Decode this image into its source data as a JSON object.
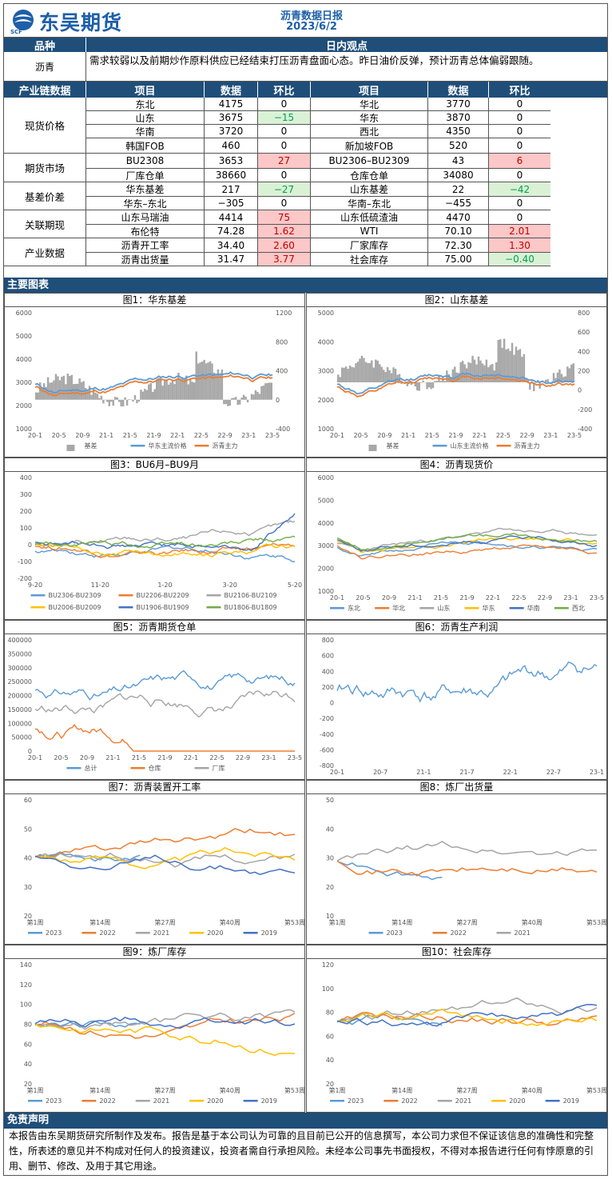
{
  "header": {
    "logo_text": "东吴期货",
    "logo_sub": "SCF",
    "title": "沥青数据日报",
    "date": "2023/6/2"
  },
  "section_view": {
    "col1": "品种",
    "col2": "日内观点",
    "product": "沥青",
    "view": "需求较弱以及前期炒作原料供应已经结束打压沥青盘面心态。昨日油价反弹，预计沥青总体偏弱跟随。"
  },
  "section_chain": {
    "headers": [
      "产业链数据",
      "项目",
      "数据",
      "环比",
      "项目",
      "数据",
      "环比"
    ],
    "groups": [
      {
        "name": "现货价格",
        "rows": 4
      },
      {
        "name": "期货市场",
        "rows": 2
      },
      {
        "name": "基差价差",
        "rows": 2
      },
      {
        "name": "关联期现",
        "rows": 2
      },
      {
        "name": "产业数据",
        "rows": 2
      }
    ],
    "rows": [
      [
        "东北",
        "4175",
        "0",
        "",
        "华北",
        "3770",
        "0",
        ""
      ],
      [
        "山东",
        "3675",
        "−15",
        "g",
        "华东",
        "3870",
        "0",
        ""
      ],
      [
        "华南",
        "3720",
        "0",
        "",
        "西北",
        "4350",
        "0",
        ""
      ],
      [
        "韩国FOB",
        "460",
        "0",
        "",
        "新加坡FOB",
        "520",
        "0",
        ""
      ],
      [
        "BU2308",
        "3653",
        "27",
        "r",
        "BU2306–BU2309",
        "43",
        "6",
        "r"
      ],
      [
        "厂库仓单",
        "38660",
        "0",
        "",
        "仓库仓单",
        "34080",
        "0",
        ""
      ],
      [
        "华东基差",
        "217",
        "−27",
        "g",
        "山东基差",
        "22",
        "−42",
        "g"
      ],
      [
        "华东–东北",
        "−305",
        "0",
        "",
        "华南–东北",
        "−455",
        "0",
        ""
      ],
      [
        "山东马瑞油",
        "4414",
        "75",
        "r",
        "山东低硫渣油",
        "4470",
        "0",
        ""
      ],
      [
        "布伦特",
        "74.28",
        "1.62",
        "r",
        "WTI",
        "70.10",
        "2.01",
        "r"
      ],
      [
        "沥青开工率",
        "34.40",
        "2.60",
        "r",
        "厂家库存",
        "72.30",
        "1.30",
        "r"
      ],
      [
        "沥青出货量",
        "31.47",
        "3.77",
        "r",
        "社会库存",
        "75.00",
        "−0.40",
        "g"
      ]
    ]
  },
  "charts_label": "主要图表",
  "colors": {
    "blue": "#5b9bd5",
    "orange": "#ed7d31",
    "gray": "#a5a5a5",
    "yellow": "#ffc000",
    "navy": "#4472c4",
    "green": "#70ad47",
    "bar_gray": "#a8a8a8"
  },
  "charts": [
    {
      "title": "图1：华东基差",
      "yl": [
        "6000",
        "5000",
        "4000",
        "3000",
        "2000",
        "1000"
      ],
      "yr": [
        "1200",
        "800",
        "400",
        "0",
        "-400"
      ],
      "x": [
        "20-1",
        "20-5",
        "20-9",
        "21-1",
        "21-5",
        "21-9",
        "22-1",
        "22-5",
        "22-9",
        "23-1",
        "23-5"
      ],
      "legend": [
        "基差",
        "华东主流价格",
        "沥青主力"
      ]
    },
    {
      "title": "图2：山东基差",
      "yl": [
        "5000",
        "4000",
        "3000",
        "2000",
        "1000"
      ],
      "yr": [
        "800",
        "600",
        "400",
        "200",
        "0",
        "-200",
        "-400"
      ],
      "x": [
        "20-1",
        "20-5",
        "20-9",
        "21-1",
        "21-5",
        "21-9",
        "22-1",
        "22-5",
        "22-9",
        "23-1",
        "23-5"
      ],
      "legend": [
        "基差",
        "山东主流价格",
        "沥青主力"
      ]
    },
    {
      "title": "图3：BU6月–BU9月",
      "yl": [
        "400",
        "300",
        "200",
        "100",
        "0",
        "-100",
        "-200"
      ],
      "x": [
        "9-20",
        "11-20",
        "1-20",
        "3-20",
        "5-20"
      ],
      "legend": [
        "BU2306-BU2309",
        "BU2206-BU2209",
        "BU2106-BU2109",
        "BU2006-BU2009",
        "BU1906-BU1909",
        "BU1806-BU1809"
      ]
    },
    {
      "title": "图4：沥青现货价",
      "yl": [
        "6000",
        "5000",
        "4000",
        "3000",
        "2000",
        "1000"
      ],
      "x": [
        "20-1",
        "20-5",
        "20-9",
        "21-1",
        "21-5",
        "21-9",
        "22-1",
        "22-5",
        "22-9",
        "23-1",
        "23-5"
      ],
      "legend": [
        "东北",
        "华北",
        "山东",
        "华东",
        "华南",
        "西北"
      ]
    },
    {
      "title": "图5：沥青期货仓单",
      "yl": [
        "400000",
        "350000",
        "300000",
        "250000",
        "200000",
        "150000",
        "100000",
        "50000",
        "0"
      ],
      "x": [
        "20-1",
        "20-5",
        "20-9",
        "21-1",
        "21-5",
        "21-9",
        "22-1",
        "22-5",
        "22-9",
        "23-1",
        "23-5"
      ],
      "legend": [
        "总计",
        "仓库",
        "厂库"
      ]
    },
    {
      "title": "图6：沥青生产利润",
      "yl": [
        "800",
        "600",
        "400",
        "200",
        "0",
        "-200",
        "-400",
        "-600",
        "-800"
      ],
      "x": [
        "20-1",
        "20-7",
        "21-1",
        "21-7",
        "22-1",
        "22-7",
        "23-1"
      ]
    },
    {
      "title": "图7：沥青装置开工率",
      "yl": [
        "60",
        "50",
        "40",
        "30",
        "20"
      ],
      "x": [
        "第1周",
        "第14周",
        "第27周",
        "第40周",
        "第53周"
      ],
      "legend": [
        "2023",
        "2022",
        "2021",
        "2020",
        "2019"
      ]
    },
    {
      "title": "图8：炼厂出货量",
      "yl": [
        "50",
        "40",
        "30",
        "20",
        "10"
      ],
      "x": [
        "第1周",
        "第14周",
        "第27周",
        "第40周",
        "第53周"
      ],
      "legend": [
        "2023",
        "2022",
        "2021"
      ]
    },
    {
      "title": "图9：炼厂库存",
      "yl": [
        "140",
        "120",
        "100",
        "80",
        "60",
        "40",
        "20"
      ],
      "x": [
        "第1周",
        "第14周",
        "第27周",
        "第40周",
        "第53周"
      ],
      "legend": [
        "2023",
        "2022",
        "2021",
        "2020",
        "2019"
      ]
    },
    {
      "title": "图10：社会库存",
      "yl": [
        "120",
        "100",
        "80",
        "60",
        "40",
        "20"
      ],
      "x": [
        "第1周",
        "第14周",
        "第27周",
        "第40周",
        "第53周"
      ],
      "legend": [
        "2023",
        "2022",
        "2021",
        "2020",
        "2019"
      ]
    }
  ],
  "disclaimer": {
    "title": "免责声明",
    "text": "本报告由东吴期货研究所制作及发布。报告是基于本公司认为可靠的且目前已公开的信息撰写，本公司力求但不保证该信息的准确性和完整性，所表述的意见并不构成对任何人的投资建议，投资者需自行承担风险。未经本公司事先书面授权，不得对本报告进行任何有悖原意的引用、删节、修改、及用于其它用途。"
  }
}
